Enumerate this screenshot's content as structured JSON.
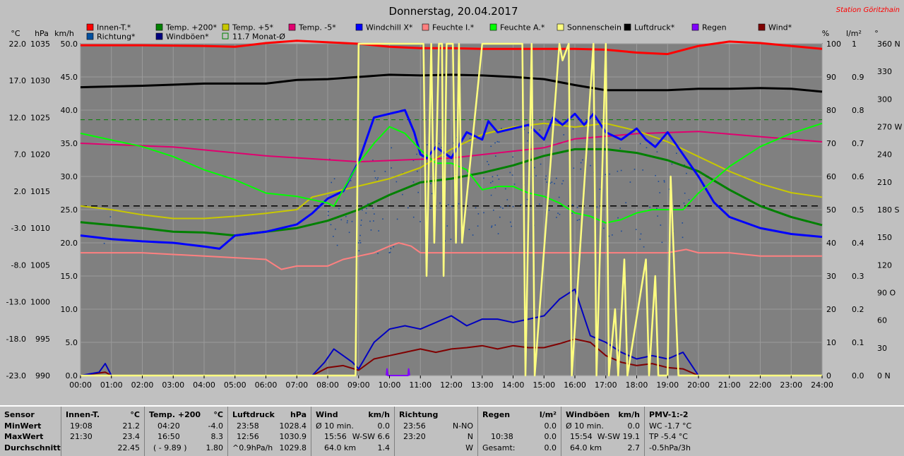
{
  "title": "Donnerstag, 20.04.2017",
  "station": "Station Göritzhain",
  "legend": [
    {
      "label": "Innen-T.*",
      "color": "#ff0000"
    },
    {
      "label": "Temp. +200*",
      "color": "#008000"
    },
    {
      "label": "Temp. +5*",
      "color": "#c8c800"
    },
    {
      "label": "Temp. -5*",
      "color": "#e0006f"
    },
    {
      "label": "Windchill X*",
      "color": "#0000ff"
    },
    {
      "label": "Feuchte I.*",
      "color": "#ff8080"
    },
    {
      "label": "Feuchte A.*",
      "color": "#00ff00"
    },
    {
      "label": "Sonnenschein",
      "color": "#ffff80"
    },
    {
      "label": "Luftdruck*",
      "color": "#000000"
    },
    {
      "label": "Regen",
      "color": "#8000ff"
    },
    {
      "label": "Wind*",
      "color": "#800000"
    },
    {
      "label": "Richtung*",
      "color": "#0050a0"
    },
    {
      "label": "Windböen*",
      "color": "#000080"
    },
    {
      "label": "11.7 Monat-Ø",
      "color": "#008000"
    }
  ],
  "axis_units": {
    "temp": "°C",
    "pressure": "hPa",
    "wind": "km/h",
    "humidity": "%",
    "rain": "l/m²",
    "direction": "°"
  },
  "chart_data": {
    "type": "line",
    "x_ticks": [
      "00:00",
      "01:00",
      "02:00",
      "03:00",
      "04:00",
      "05:00",
      "06:00",
      "07:00",
      "08:00",
      "09:00",
      "10:00",
      "11:00",
      "12:00",
      "13:00",
      "14:00",
      "15:00",
      "16:00",
      "17:00",
      "18:00",
      "19:00",
      "20:00",
      "21:00",
      "22:00",
      "23:00",
      "24:00"
    ],
    "y_axes": {
      "temp": {
        "ticks": [
          "22.0",
          "17.0",
          "12.0",
          "7.0",
          "2.0",
          "-3.0",
          "-8.0",
          "-13.0",
          "-18.0",
          "-23.0"
        ],
        "range": [
          -23,
          22
        ]
      },
      "pressure": {
        "ticks": [
          "1035",
          "1030",
          "1025",
          "1020",
          "1015",
          "1010",
          "1005",
          "1000",
          "995",
          "990"
        ],
        "range": [
          990,
          1035
        ]
      },
      "wind": {
        "ticks": [
          "50.0",
          "45.0",
          "40.0",
          "35.0",
          "30.0",
          "25.0",
          "20.0",
          "15.0",
          "10.0",
          "5.0",
          "0.0"
        ],
        "range": [
          0,
          50
        ]
      },
      "humidity": {
        "ticks": [
          "100",
          "90",
          "80",
          "70",
          "60",
          "50",
          "40",
          "30",
          "20",
          "10",
          "0"
        ],
        "range": [
          0,
          100
        ]
      },
      "rain": {
        "ticks": [
          "1",
          "0.9",
          "0.8",
          "0.7",
          "0.6",
          "0.5",
          "0.4",
          "0.3",
          "0.2",
          "0.1",
          "0.0"
        ],
        "range": [
          0,
          1
        ]
      },
      "direction": {
        "ticks": [
          "360 N",
          "330",
          "300",
          "270 W",
          "240",
          "210",
          "180 S",
          "150",
          "120",
          "90 O",
          "60",
          "30",
          "0 N"
        ],
        "range": [
          0,
          360
        ]
      }
    },
    "reference_line": {
      "label": "11.7 Monat-Ø",
      "axis": "temp",
      "value": 11.7
    },
    "zero_line": {
      "axis": "temp",
      "value": 0
    },
    "series": [
      {
        "name": "Innen-T.*",
        "color": "#ff0000",
        "axis": "temp",
        "width": 3,
        "x": [
          0,
          2,
          4,
          5,
          6,
          7,
          8,
          9,
          10,
          11,
          12,
          13,
          14,
          15,
          16,
          17,
          18,
          19,
          20,
          21,
          22,
          23,
          24
        ],
        "y": [
          21.8,
          21.8,
          21.7,
          21.6,
          22.1,
          22.4,
          22.2,
          22.0,
          21.6,
          21.4,
          21.4,
          21.3,
          21.3,
          21.3,
          21.3,
          21.2,
          20.8,
          20.6,
          21.7,
          22.3,
          22.1,
          21.7,
          21.3
        ]
      },
      {
        "name": "Luftdruck*",
        "color": "#000000",
        "axis": "pressure",
        "width": 3,
        "x": [
          0,
          2,
          4,
          6,
          7,
          8,
          9,
          10,
          11,
          12,
          13,
          14,
          15,
          16,
          17,
          18,
          19,
          20,
          21,
          22,
          23,
          24
        ],
        "y": [
          1029.1,
          1029.3,
          1029.6,
          1029.6,
          1030.1,
          1030.2,
          1030.5,
          1030.8,
          1030.7,
          1030.8,
          1030.7,
          1030.5,
          1030.2,
          1029.4,
          1028.7,
          1028.7,
          1028.7,
          1028.9,
          1028.9,
          1029.0,
          1028.9,
          1028.5
        ]
      },
      {
        "name": "Temp. -5*",
        "color": "#e0006f",
        "axis": "temp",
        "width": 2,
        "x": [
          0,
          3,
          6,
          9,
          12,
          15,
          16,
          18,
          20,
          22,
          24
        ],
        "y": [
          8.5,
          8.0,
          6.8,
          6.0,
          6.5,
          7.9,
          9.1,
          9.8,
          10.1,
          9.4,
          8.7
        ]
      },
      {
        "name": "Feuchte I.*",
        "color": "#ff8080",
        "axis": "humidity",
        "width": 2,
        "x": [
          0,
          2,
          4,
          6,
          6.5,
          7,
          8,
          8.5,
          9,
          9.5,
          10,
          10.3,
          10.7,
          11,
          12,
          13,
          14,
          15,
          16,
          17,
          18,
          19,
          19.6,
          20,
          21,
          22,
          23,
          24
        ],
        "y": [
          37,
          37,
          36,
          35,
          32,
          33,
          33,
          35,
          36,
          37,
          39,
          40,
          39,
          37,
          37,
          37,
          37,
          37,
          37,
          37,
          37,
          37,
          38,
          37,
          37,
          36,
          36,
          36
        ]
      },
      {
        "name": "Temp. +5*",
        "color": "#c8c800",
        "axis": "temp",
        "width": 2,
        "x": [
          0,
          1,
          2,
          3,
          4,
          5,
          6,
          7,
          7.5,
          8,
          9,
          10,
          11,
          11.8,
          12,
          13,
          14,
          15,
          16,
          17,
          18,
          19,
          20,
          21,
          22,
          23,
          24
        ],
        "y": [
          0.0,
          -0.5,
          -1.2,
          -1.7,
          -1.7,
          -1.4,
          -1.0,
          -0.5,
          1.2,
          1.7,
          2.7,
          3.7,
          5.2,
          7.2,
          7.7,
          9.7,
          10.7,
          11.2,
          10.7,
          11.2,
          10.2,
          8.7,
          6.7,
          4.7,
          3.0,
          1.8,
          1.2
        ]
      },
      {
        "name": "Temp. +200*",
        "color": "#008000",
        "axis": "temp",
        "width": 3,
        "x": [
          0,
          1,
          2,
          3,
          4,
          5,
          6,
          7,
          8,
          9,
          10,
          11,
          12,
          13,
          14,
          15,
          16,
          17,
          18,
          19,
          20,
          21,
          22,
          23,
          24
        ],
        "y": [
          -2.2,
          -2.6,
          -3.0,
          -3.5,
          -3.6,
          -4.0,
          -3.5,
          -3.0,
          -2.0,
          -0.5,
          1.5,
          3.2,
          3.7,
          4.5,
          5.5,
          6.8,
          7.7,
          7.7,
          7.2,
          6.2,
          4.7,
          2.2,
          0.0,
          -1.5,
          -2.6
        ]
      },
      {
        "name": "Windchill X*",
        "color": "#0000ff",
        "axis": "temp",
        "width": 3,
        "x": [
          0,
          1,
          2,
          3,
          4,
          4.5,
          5,
          6,
          7,
          7.5,
          8,
          8.5,
          9,
          9.5,
          10,
          10.5,
          10.8,
          11,
          11.2,
          11.5,
          12,
          12.5,
          13,
          13.2,
          13.5,
          14,
          14.5,
          15,
          15.3,
          15.6,
          16,
          16.3,
          16.6,
          17,
          17.5,
          18,
          18.3,
          18.6,
          19,
          19.5,
          20,
          20.5,
          21,
          22,
          23,
          24
        ],
        "y": [
          -4.0,
          -4.5,
          -4.8,
          -5.0,
          -5.5,
          -5.8,
          -4.0,
          -3.5,
          -2.5,
          -1.0,
          1.0,
          2.0,
          6.0,
          12.0,
          12.5,
          13.0,
          10.0,
          7.0,
          6.5,
          8.0,
          6.5,
          10.0,
          9.0,
          11.5,
          10.0,
          10.5,
          11.0,
          9.0,
          12.0,
          11.0,
          12.5,
          11.0,
          12.5,
          10.0,
          9.0,
          10.5,
          9.0,
          8.0,
          10.0,
          7.0,
          4.0,
          0.5,
          -1.5,
          -3.0,
          -3.8,
          -4.2
        ]
      },
      {
        "name": "Feuchte A.*",
        "color": "#00ff00",
        "axis": "humidity",
        "width": 2,
        "x": [
          0,
          0.5,
          1,
          2,
          3,
          3.5,
          4,
          5,
          6,
          7,
          8,
          8.2,
          8.5,
          9,
          9.5,
          10,
          10.5,
          11,
          11.5,
          12,
          12.5,
          13,
          13.5,
          14,
          14.5,
          15,
          15.5,
          16,
          16.5,
          17,
          17.5,
          18,
          18.5,
          19,
          19.5,
          20,
          21,
          22,
          23,
          24
        ],
        "y": [
          73,
          72,
          71,
          69,
          66,
          64,
          62,
          59,
          55,
          54,
          52,
          51,
          56,
          64,
          70,
          75,
          73,
          68,
          64,
          64,
          62,
          56,
          57,
          57,
          55,
          54,
          52,
          49,
          48,
          46,
          47,
          49,
          50,
          50,
          50,
          55,
          63,
          69,
          73,
          76
        ]
      },
      {
        "name": "Wind*",
        "color": "#800000",
        "axis": "wind",
        "width": 2,
        "x": [
          0,
          0.8,
          1,
          7.5,
          8,
          8.5,
          9,
          9.5,
          10,
          10.5,
          11,
          11.5,
          12,
          12.5,
          13,
          13.5,
          14,
          14.5,
          15,
          15.5,
          16,
          16.5,
          17,
          17.5,
          18,
          18.5,
          19,
          19.5,
          20,
          24
        ],
        "y": [
          0,
          0.5,
          0,
          0,
          1.2,
          1.5,
          0.8,
          2.5,
          3.0,
          3.5,
          4.0,
          3.5,
          4.0,
          4.2,
          4.5,
          4.0,
          4.5,
          4.2,
          4.2,
          4.8,
          5.5,
          5.0,
          3.0,
          2.0,
          1.5,
          1.8,
          1.2,
          1.0,
          0,
          0
        ]
      },
      {
        "name": "Windböen*",
        "color": "#0000c0",
        "axis": "wind",
        "width": 2,
        "x": [
          0,
          0.6,
          0.8,
          1.0,
          7.5,
          7.9,
          8.2,
          8.5,
          8.8,
          9.0,
          9.5,
          10,
          10.5,
          11,
          11.5,
          12,
          12.5,
          13,
          13.5,
          14,
          14.5,
          15,
          15.5,
          16,
          16.5,
          17,
          17.5,
          18,
          18.5,
          19,
          19.5,
          20,
          24
        ],
        "y": [
          0,
          0.5,
          1.8,
          0,
          0,
          2.0,
          4.0,
          3.0,
          2.0,
          1.0,
          5.0,
          7.0,
          7.5,
          7.0,
          8.0,
          9.0,
          7.5,
          8.5,
          8.5,
          8.0,
          8.5,
          9.0,
          11.5,
          13.0,
          6.0,
          5.0,
          3.5,
          2.5,
          3.0,
          2.5,
          3.5,
          0,
          0
        ]
      },
      {
        "name": "Sonnenschein",
        "color": "#ffff80",
        "axis": "humidity",
        "width": 2.5,
        "x": [
          0,
          8.9,
          9.0,
          11.1,
          11.2,
          11.35,
          11.45,
          11.6,
          11.7,
          11.75,
          11.85,
          12.05,
          12.15,
          12.25,
          12.35,
          13.0,
          13.1,
          14.3,
          14.4,
          14.6,
          14.7,
          15.5,
          15.6,
          15.8,
          15.9,
          16.6,
          16.7,
          17.0,
          17.1,
          17.3,
          17.4,
          17.6,
          17.7,
          18.3,
          18.4,
          18.6,
          18.7,
          19.0,
          19.1,
          19.35,
          19.5,
          19.6,
          19.7,
          24
        ],
        "y": [
          0,
          0,
          100,
          100,
          30,
          100,
          40,
          100,
          100,
          30,
          100,
          100,
          40,
          100,
          40,
          100,
          100,
          100,
          0,
          100,
          0,
          100,
          95,
          100,
          0,
          100,
          0,
          100,
          0,
          20,
          0,
          35,
          0,
          35,
          0,
          30,
          0,
          0,
          60,
          0,
          0,
          0,
          0,
          0
        ]
      },
      {
        "name": "Regen",
        "color": "#8000ff",
        "axis": "rain",
        "width": 2,
        "x": [
          9.9,
          9.92,
          9.95,
          10.6,
          10.62,
          10.65
        ],
        "y": [
          0,
          0.02,
          0,
          0,
          0.02,
          0
        ]
      }
    ],
    "direction_scatter_note": "Richtung* drawn as scattered points"
  },
  "stats": {
    "sensor": {
      "header": "Sensor",
      "rows": [
        "MinWert",
        "MaxWert",
        "Durchschnitt"
      ]
    },
    "innen": {
      "header": "Innen-T.",
      "unit": "°C",
      "rows": [
        [
          "19:08",
          "21.2"
        ],
        [
          "21:30",
          "23.4"
        ],
        [
          "",
          "22.45"
        ]
      ]
    },
    "temp200": {
      "header": "Temp. +200",
      "unit": "°C",
      "rows": [
        [
          "04:20",
          "-4.0"
        ],
        [
          "16:50",
          "8.3"
        ],
        [
          "( - 9.89 )",
          "1.80"
        ]
      ]
    },
    "luftdruck": {
      "header": "Luftdruck",
      "unit": "hPa",
      "rows": [
        [
          "23:58",
          "1028.4"
        ],
        [
          "12:56",
          "1030.9"
        ],
        [
          "^0.9hPa/h",
          "1029.8"
        ]
      ]
    },
    "wind": {
      "header": "Wind",
      "unit": "km/h",
      "rows": [
        [
          "Ø 10 min.",
          "",
          "0.0"
        ],
        [
          "15:56",
          "W-SW 6.6",
          ""
        ],
        [
          "64.0 km",
          "",
          "1.4"
        ]
      ]
    },
    "richtung": {
      "header": "Richtung",
      "rows": [
        [
          "23:56",
          "N-NO"
        ],
        [
          "23:20",
          "N"
        ],
        [
          "",
          "W"
        ]
      ]
    },
    "regen": {
      "header": "Regen",
      "unit": "l/m²",
      "rows": [
        [
          "",
          "0.0"
        ],
        [
          "10:38",
          "0.0"
        ],
        [
          "Gesamt:",
          "0.0"
        ]
      ]
    },
    "windboeen": {
      "header": "Windböen",
      "unit": "km/h",
      "rows": [
        [
          "Ø 10 min.",
          "",
          "0.0"
        ],
        [
          "15:54",
          "W-SW 19.1",
          ""
        ],
        [
          "64.0 km",
          "",
          "2.7"
        ]
      ]
    },
    "pmv": {
      "header": "PMV-1:-2",
      "rows": [
        "WC -1.7 °C",
        "TP -5.4 °C",
        "-0.5hPa/3h"
      ]
    }
  }
}
